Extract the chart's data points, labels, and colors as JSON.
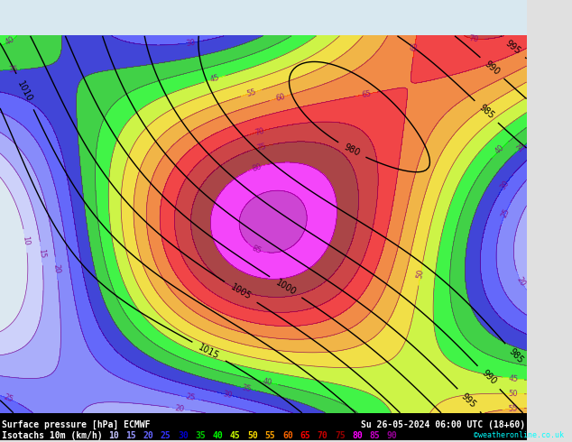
{
  "title_left": "Surface pressure [hPa] ECMWF",
  "title_right": "Su 26-05-2024 06:00 UTC (18+60)",
  "legend_label": "Isotachs 10m (km/h)",
  "watermark": "©weatheronline.co.uk",
  "isotach_values": [
    10,
    15,
    20,
    25,
    30,
    35,
    40,
    45,
    50,
    55,
    60,
    65,
    70,
    75,
    80,
    85,
    90
  ],
  "isotach_colors": [
    "#c8c8ff",
    "#9696ff",
    "#6464ff",
    "#3232ff",
    "#0000cd",
    "#00c800",
    "#00fa00",
    "#c8fa00",
    "#fadc00",
    "#faa000",
    "#fa6400",
    "#fa0000",
    "#c80000",
    "#960000",
    "#ff00ff",
    "#c800c8",
    "#960096"
  ],
  "bg_color": "#e8e8e8",
  "map_bg": "#f0f0f0",
  "bottom_bar_color": "#000000",
  "bottom_bg": "#000000",
  "text_color_left": "#ffffff",
  "text_color_right": "#ffffff",
  "figsize": [
    6.34,
    4.9
  ],
  "dpi": 100
}
